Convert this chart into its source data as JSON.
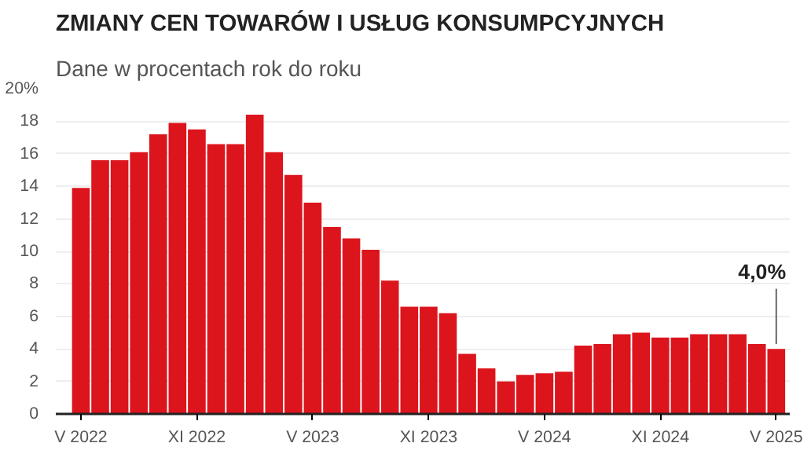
{
  "chart_data": {
    "type": "bar",
    "title": "ZMIANY CEN TOWARÓW I USŁUG KONSUMPCYJNYCH",
    "subtitle": "Dane w procentach rok do roku",
    "categories": [
      "V 2022",
      null,
      null,
      null,
      null,
      null,
      "XI 2022",
      null,
      null,
      null,
      null,
      null,
      "V 2023",
      null,
      null,
      null,
      null,
      null,
      "XI 2023",
      null,
      null,
      null,
      null,
      null,
      "V 2024",
      null,
      null,
      null,
      null,
      null,
      "XI 2024",
      null,
      null,
      null,
      null,
      null,
      "V 2025"
    ],
    "values": [
      13.9,
      15.6,
      15.6,
      16.1,
      17.2,
      17.9,
      17.5,
      16.6,
      16.6,
      18.4,
      16.1,
      14.7,
      13.0,
      11.5,
      10.8,
      10.1,
      8.2,
      6.6,
      6.6,
      6.2,
      3.7,
      2.8,
      2.0,
      2.4,
      2.5,
      2.6,
      4.2,
      4.3,
      4.9,
      5.0,
      4.7,
      4.7,
      4.9,
      4.9,
      4.9,
      4.3,
      4.0
    ],
    "color": "#dc141c",
    "ylim": [
      0,
      20
    ],
    "yticks": [
      0,
      2,
      4,
      6,
      8,
      10,
      12,
      14,
      16,
      18,
      {
        "value": 20,
        "label": "20%"
      }
    ],
    "grid": "y",
    "annotations": [
      {
        "text": "4,0%",
        "x": "V 2025",
        "y": 4.0
      }
    ]
  }
}
